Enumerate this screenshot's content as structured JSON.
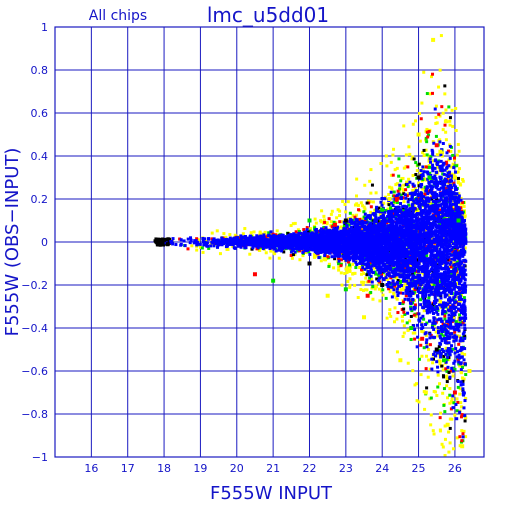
{
  "header": {
    "left_label": "All chips",
    "title": "lmc_u5dd01"
  },
  "chart_data": {
    "type": "scatter",
    "title": "lmc_u5dd01",
    "subtitle": "All chips",
    "xlabel": "F555W INPUT",
    "ylabel": "F555W (OBS−INPUT)",
    "xlim": [
      15,
      26.8
    ],
    "ylim": [
      -1,
      1
    ],
    "x_ticks": [
      "16",
      "17",
      "18",
      "19",
      "20",
      "21",
      "22",
      "23",
      "24",
      "25",
      "26"
    ],
    "y_ticks": [
      "1",
      "0.8",
      "0.6",
      "0.4",
      "0.2",
      "0",
      "−0.2",
      "−0.4",
      "−0.6",
      "−0.8",
      "−1"
    ],
    "grid": true,
    "colors": {
      "axis": "#1515c8",
      "grid": "#1a1ac0",
      "points_main": "#0000ff",
      "points_secondary": [
        "#ffff00",
        "#00dd00",
        "#ff0000",
        "#000000"
      ]
    },
    "series": [
      {
        "color": "#0000ff",
        "envelope": {
          "x": [
            17.8,
            18.5,
            19.0,
            20.0,
            21.0,
            22.0,
            23.0,
            23.5,
            24.0,
            24.5,
            25.0,
            25.5,
            26.0,
            26.3
          ],
          "upper": [
            0.01,
            0.02,
            0.02,
            0.02,
            0.03,
            0.04,
            0.07,
            0.1,
            0.13,
            0.18,
            0.25,
            0.38,
            0.3,
            0.05
          ],
          "lower": [
            -0.01,
            -0.02,
            -0.02,
            -0.02,
            -0.03,
            -0.04,
            -0.07,
            -0.1,
            -0.14,
            -0.2,
            -0.3,
            -0.45,
            -0.6,
            -0.75
          ]
        },
        "scatter_sample": [
          [
            18.2,
            0.0
          ],
          [
            19.5,
            -0.01
          ],
          [
            20.5,
            0.01
          ],
          [
            21.5,
            -0.02
          ],
          [
            22.3,
            0.03
          ],
          [
            22.8,
            -0.05
          ],
          [
            23.3,
            0.06
          ],
          [
            23.8,
            -0.1
          ],
          [
            24.2,
            0.14
          ],
          [
            24.6,
            -0.18
          ],
          [
            25.0,
            0.22
          ],
          [
            25.3,
            -0.3
          ],
          [
            25.6,
            0.35
          ],
          [
            25.8,
            -0.42
          ],
          [
            26.1,
            0.2
          ]
        ]
      },
      {
        "color": "#ffff00",
        "scatter_sample": [
          [
            22.5,
            -0.25
          ],
          [
            23.5,
            -0.35
          ],
          [
            24.2,
            0.2
          ],
          [
            24.5,
            -0.55
          ],
          [
            25.0,
            0.5
          ],
          [
            25.2,
            -0.7
          ],
          [
            25.6,
            0.42
          ],
          [
            25.8,
            -0.85
          ],
          [
            26.0,
            0.3
          ],
          [
            26.2,
            -0.95
          ],
          [
            25.4,
            0.94
          ],
          [
            26.4,
            -0.6
          ]
        ]
      },
      {
        "color": "#00dd00",
        "scatter_sample": [
          [
            21.0,
            -0.18
          ],
          [
            22.0,
            0.1
          ],
          [
            23.0,
            -0.22
          ],
          [
            24.0,
            0.15
          ],
          [
            24.8,
            -0.4
          ],
          [
            25.3,
            0.3
          ],
          [
            25.7,
            -0.55
          ],
          [
            26.1,
            0.1
          ]
        ]
      },
      {
        "color": "#ff0000",
        "scatter_sample": [
          [
            20.5,
            -0.15
          ],
          [
            22.7,
            0.08
          ],
          [
            23.6,
            -0.25
          ],
          [
            24.4,
            0.2
          ],
          [
            25.1,
            -0.45
          ],
          [
            25.5,
            0.45
          ],
          [
            26.0,
            -0.7
          ]
        ]
      },
      {
        "color": "#000000",
        "scatter_sample": [
          [
            17.9,
            0.0
          ],
          [
            18.0,
            0.01
          ],
          [
            18.1,
            -0.01
          ],
          [
            22.0,
            -0.1
          ],
          [
            23.0,
            0.1
          ],
          [
            24.0,
            -0.2
          ],
          [
            25.0,
            0.3
          ],
          [
            25.5,
            -0.5
          ]
        ]
      }
    ]
  }
}
